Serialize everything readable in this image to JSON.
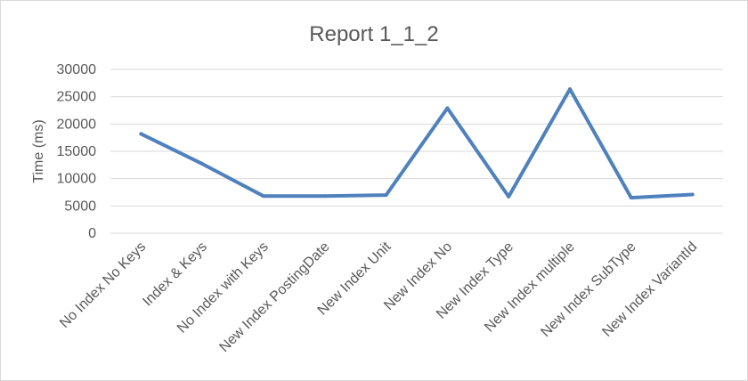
{
  "chart_data": {
    "type": "line",
    "title": "Report 1_1_2",
    "xlabel": "",
    "ylabel": "Time (ms)",
    "ylim": [
      0,
      30000
    ],
    "yticks": [
      0,
      5000,
      10000,
      15000,
      20000,
      25000,
      30000
    ],
    "grid": true,
    "categories": [
      "No Index No Keys",
      "Index & Keys",
      "No Index with Keys",
      "New Index PostingDate",
      "New Index Unit",
      "New Index No",
      "New Index Type",
      "New Index multiple",
      "New Index SubType",
      "New Index VariantId"
    ],
    "series": [
      {
        "color": "#4f81bd",
        "values": [
          18200,
          12700,
          6800,
          6800,
          7000,
          22900,
          6700,
          26400,
          6500,
          7100
        ]
      }
    ]
  }
}
